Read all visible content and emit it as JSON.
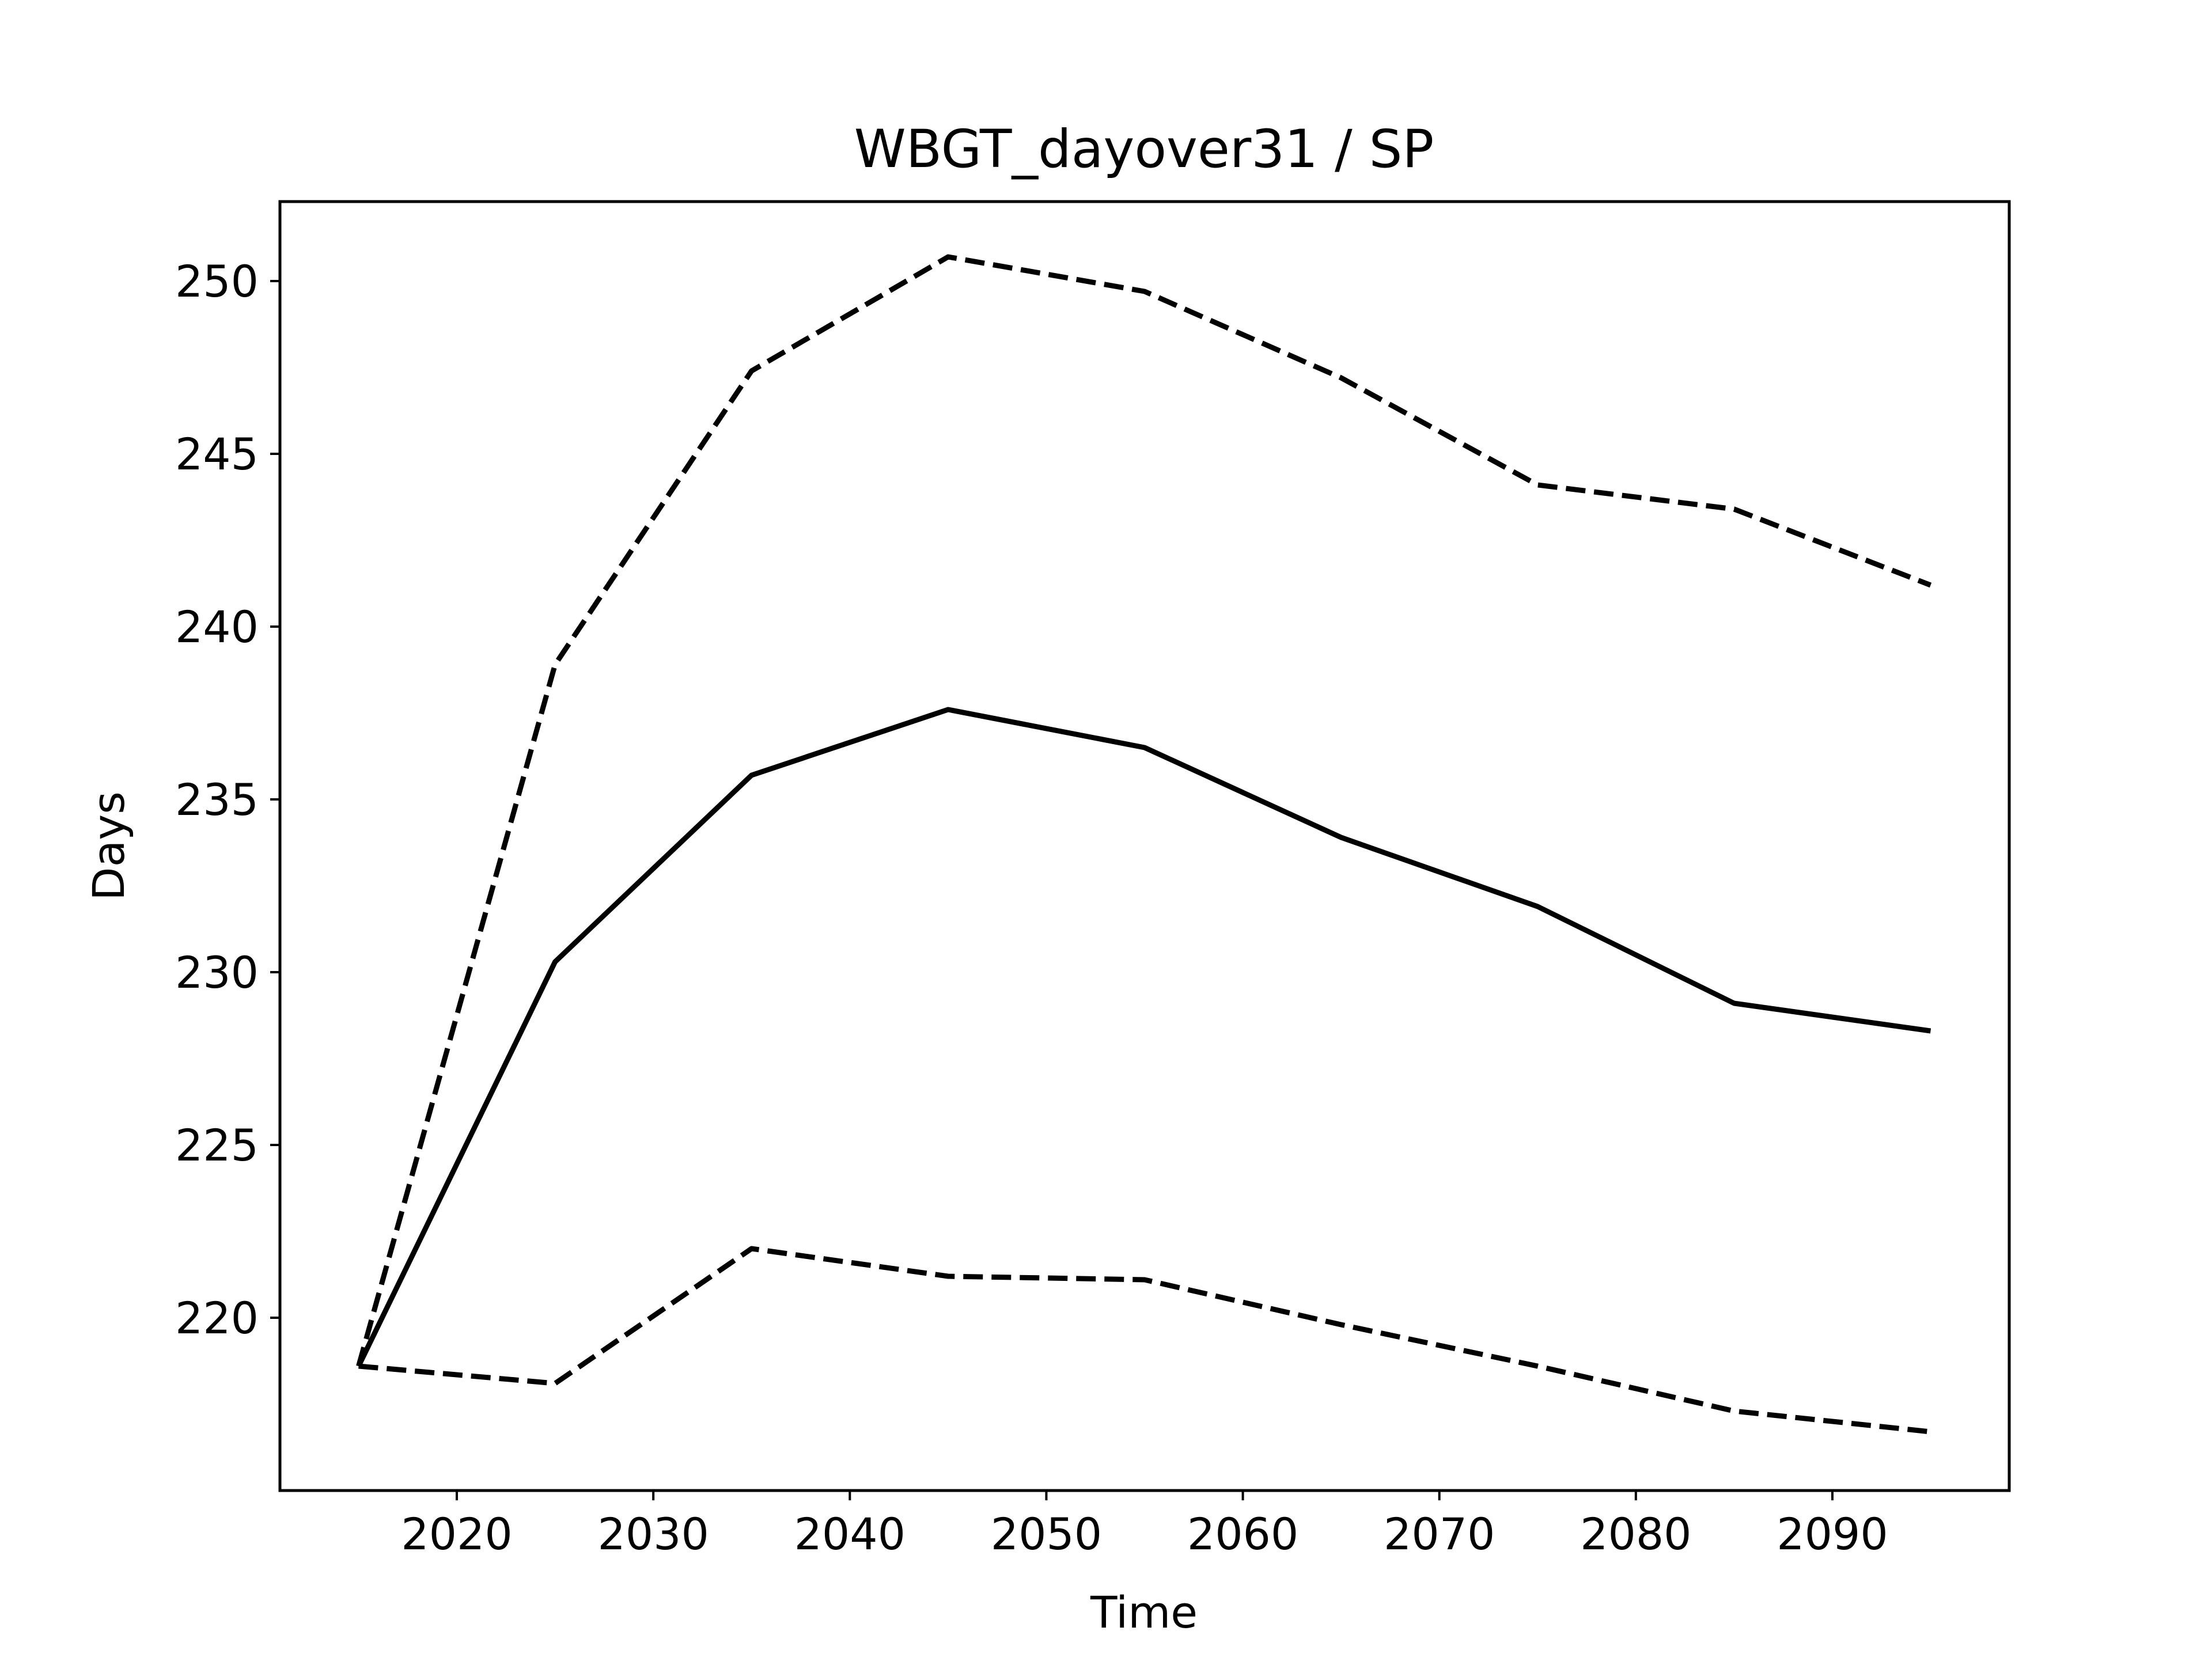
{
  "chart_data": {
    "type": "line",
    "title": "WBGT_dayover31 / SP",
    "xlabel": "Time",
    "ylabel": "Days",
    "xlim": [
      2011,
      2099
    ],
    "ylim": [
      215,
      252.3
    ],
    "xticks": [
      2020,
      2030,
      2040,
      2050,
      2060,
      2070,
      2080,
      2090
    ],
    "yticks": [
      220,
      225,
      230,
      235,
      240,
      245,
      250
    ],
    "grid": false,
    "legend": "none",
    "line_color": "#000000",
    "x": [
      2015,
      2025,
      2035,
      2045,
      2055,
      2065,
      2075,
      2085,
      2095
    ],
    "series": [
      {
        "style": "solid",
        "values": [
          218.6,
          230.3,
          235.7,
          237.6,
          236.5,
          233.9,
          231.9,
          229.1,
          228.3
        ]
      },
      {
        "style": "dashed",
        "values": [
          218.6,
          238.9,
          247.4,
          250.7,
          249.7,
          247.2,
          244.1,
          243.4,
          241.2
        ]
      },
      {
        "style": "dashed",
        "values": [
          218.6,
          218.1,
          222.0,
          221.2,
          221.1,
          219.8,
          218.6,
          217.3,
          216.7
        ]
      }
    ]
  }
}
